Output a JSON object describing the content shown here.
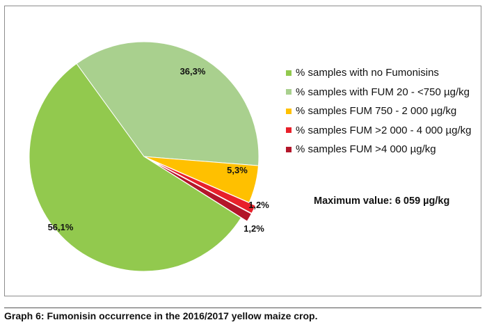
{
  "chart_data": {
    "type": "pie",
    "categories": [
      "% samples with no Fumonisins",
      "% samples with FUM 20 - <750 µg/kg",
      "% samples FUM 750 - 2 000 µg/kg",
      "% samples FUM >2 000 - 4 000 µg/kg",
      "% samples FUM >4 000 µg/kg"
    ],
    "values": [
      56.1,
      36.3,
      5.3,
      1.2,
      1.2
    ],
    "value_labels": [
      "56,1%",
      "36,3%",
      "5,3%",
      "1,2%",
      "1,2%"
    ],
    "colors": [
      "#92c94e",
      "#a9d08e",
      "#ffc000",
      "#e8202a",
      "#b3162a"
    ],
    "legend_position": "right",
    "annotation": "Maximum value: 6 059 µg/kg"
  },
  "caption": "Graph 6: Fumonisin occurrence in the 2016/2017 yellow maize crop."
}
